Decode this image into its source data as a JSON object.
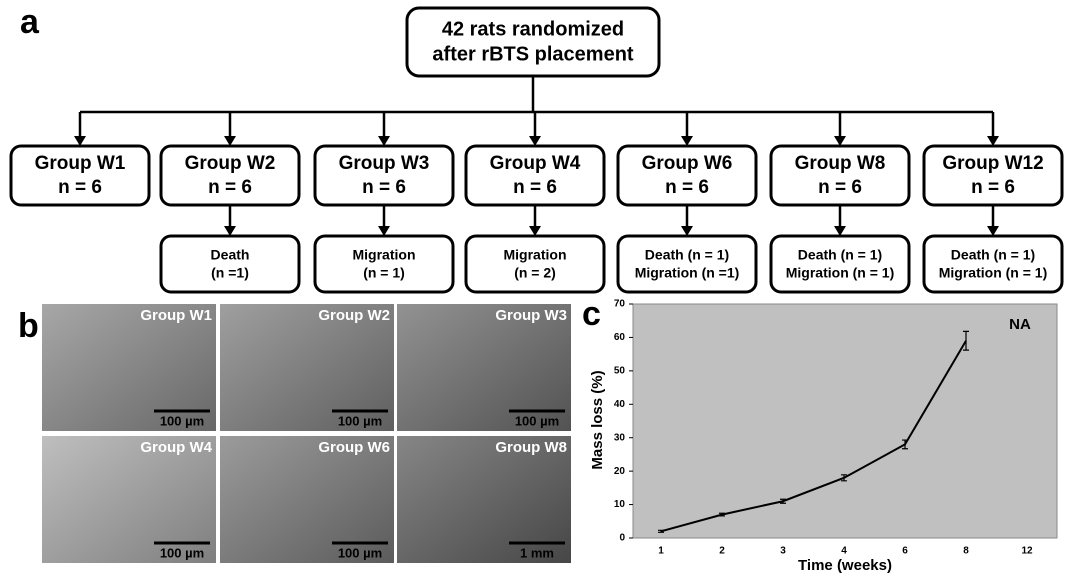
{
  "panel_labels": [
    "a",
    "b",
    "c"
  ],
  "flowchart": {
    "root": [
      "42 rats randomized",
      "after rBTS placement"
    ],
    "groups": [
      {
        "name": "Group W1",
        "n": "n = 6"
      },
      {
        "name": "Group W2",
        "n": "n = 6",
        "outcome": [
          "Death",
          "(n =1)"
        ]
      },
      {
        "name": "Group W3",
        "n": "n = 6",
        "outcome": [
          "Migration",
          "(n = 1)"
        ]
      },
      {
        "name": "Group W4",
        "n": "n = 6",
        "outcome": [
          "Migration",
          "(n = 2)"
        ]
      },
      {
        "name": "Group W6",
        "n": "n = 6",
        "outcome": [
          "Death (n = 1)",
          "Migration (n =1)"
        ]
      },
      {
        "name": "Group W8",
        "n": "n = 6",
        "outcome": [
          "Death (n = 1)",
          "Migration (n = 1)"
        ]
      },
      {
        "name": "Group W12",
        "n": "n = 6",
        "outcome": [
          "Death (n = 1)",
          "Migration (n = 1)"
        ]
      }
    ]
  },
  "images": [
    {
      "label": "Group W1",
      "scale": "100 µm",
      "shade": "#8a8a8a"
    },
    {
      "label": "Group W2",
      "scale": "100 µm",
      "shade": "#7f7f7f"
    },
    {
      "label": "Group W3",
      "scale": "100 µm",
      "shade": "#6e6e6e"
    },
    {
      "label": "Group W4",
      "scale": "100 µm",
      "shade": "#a9a9a9"
    },
    {
      "label": "Group W6",
      "scale": "100 µm",
      "shade": "#7a7a7a"
    },
    {
      "label": "Group W8",
      "scale": "1 mm",
      "shade": "#5e5e5e"
    }
  ],
  "chart_data": {
    "type": "line",
    "annotation": "NA",
    "x_label": "Time (weeks)",
    "y_label": "Mass loss (%)",
    "categories": [
      "1",
      "2",
      "3",
      "4",
      "6",
      "8",
      "12"
    ],
    "series": [
      {
        "color": "#000000",
        "values": [
          2,
          7,
          11,
          18,
          28,
          59,
          null
        ],
        "errors": [
          0.3,
          0.4,
          0.6,
          0.9,
          1.3,
          2.8,
          null
        ]
      }
    ],
    "ylim": [
      0,
      70
    ],
    "yticks": [
      0,
      10,
      20,
      30,
      40,
      50,
      60,
      70
    ],
    "background": "#c0c0c0"
  }
}
